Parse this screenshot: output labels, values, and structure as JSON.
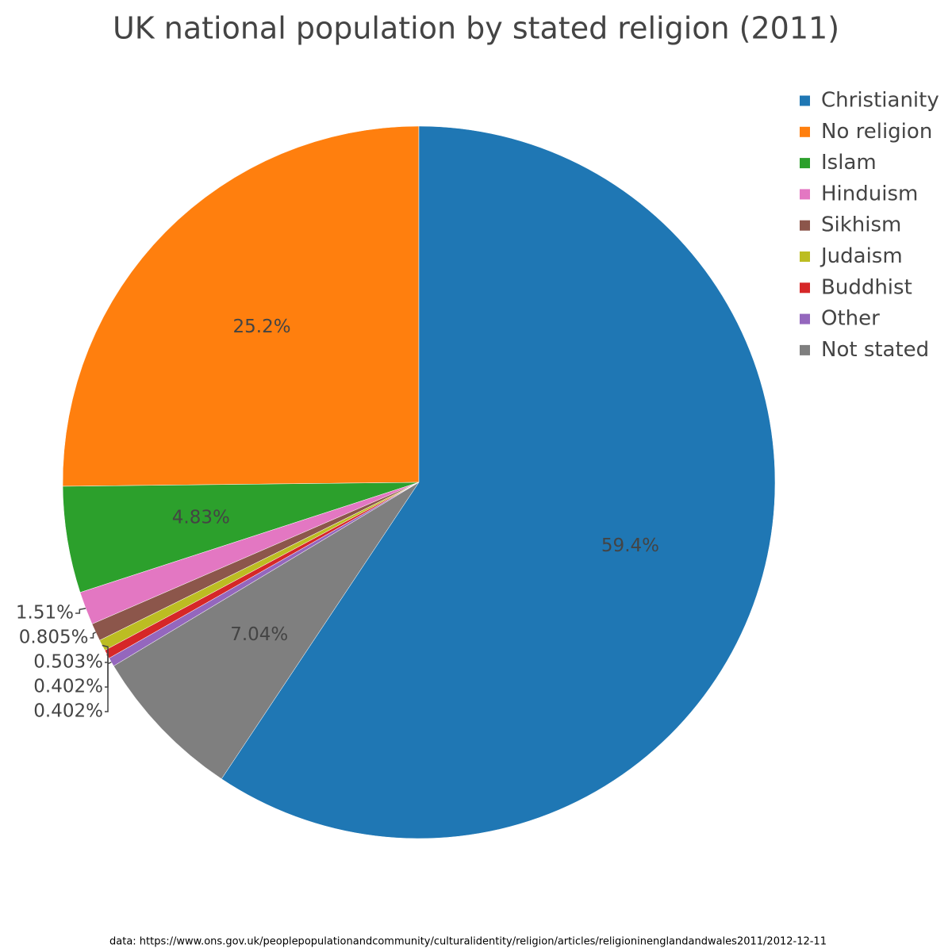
{
  "chart_data": {
    "type": "pie",
    "title": "UK national population by stated religion (2011)",
    "categories": [
      "Christianity",
      "No religion",
      "Islam",
      "Hinduism",
      "Sikhism",
      "Judaism",
      "Buddhist",
      "Other",
      "Not stated"
    ],
    "values": [
      59.4,
      25.2,
      4.83,
      1.51,
      0.805,
      0.503,
      0.402,
      0.402,
      7.04
    ],
    "value_labels": [
      "59.4%",
      "25.2%",
      "4.83%",
      "1.51%",
      "0.805%",
      "0.503%",
      "0.402%",
      "0.402%",
      "7.04%"
    ],
    "colors": [
      "#1f77b4",
      "#ff7f0e",
      "#2ca02c",
      "#e377c2",
      "#8c564b",
      "#bcbd22",
      "#d62728",
      "#9467bd",
      "#7f7f7f"
    ],
    "direction": "counterclockwise",
    "legend": "top-right",
    "source": "data: https://www.ons.gov.uk/peoplepopulationandcommunity/culturalidentity/religion/articles/religioninenglandandwales2011/2012-12-11"
  }
}
